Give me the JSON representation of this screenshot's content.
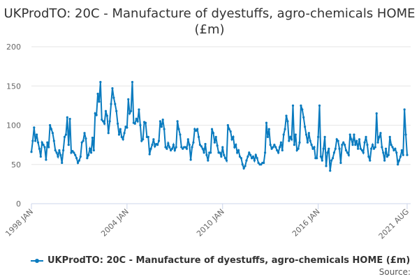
{
  "chart_data": {
    "type": "line",
    "title": "UKProdTO: 20C - Manufacture of dyestuffs, agro-chemicals HOME (£m)",
    "xlabel": "",
    "ylabel": "",
    "ylim": [
      0,
      200
    ],
    "yticks": [
      "0",
      "50",
      "100",
      "150",
      "200"
    ],
    "xticks": [
      "1998 JAN",
      "2004 JAN",
      "2010 JAN",
      "2016 JAN",
      "2021 AUG"
    ],
    "start": "1998-01",
    "frequency": "monthly",
    "grid": true,
    "legend_position": "bottom",
    "color": "#0a7bbf",
    "series": [
      {
        "name": "UKProdTO: 20C - Manufacture of dyestuffs, agro-chemicals HOME (£m)",
        "values": [
          66,
          80,
          97,
          80,
          88,
          78,
          70,
          60,
          78,
          75,
          72,
          56,
          78,
          72,
          100,
          95,
          90,
          80,
          68,
          65,
          60,
          68,
          62,
          52,
          68,
          85,
          88,
          110,
          75,
          108,
          65,
          67,
          65,
          62,
          58,
          52,
          55,
          60,
          78,
          80,
          90,
          83,
          58,
          62,
          70,
          65,
          84,
          68,
          115,
          113,
          140,
          130,
          155,
          107,
          105,
          102,
          118,
          112,
          90,
          105,
          127,
          147,
          135,
          127,
          118,
          102,
          88,
          95,
          85,
          82,
          90,
          98,
          97,
          133,
          115,
          118,
          155,
          103,
          102,
          108,
          105,
          120,
          100,
          80,
          82,
          104,
          103,
          85,
          85,
          63,
          70,
          75,
          82,
          73,
          76,
          75,
          80,
          105,
          98,
          107,
          95,
          72,
          70,
          77,
          72,
          68,
          70,
          75,
          68,
          72,
          105,
          95,
          88,
          72,
          70,
          72,
          72,
          70,
          82,
          75,
          56,
          72,
          78,
          95,
          93,
          95,
          85,
          75,
          73,
          70,
          65,
          76,
          62,
          55,
          65,
          65,
          95,
          90,
          78,
          85,
          74,
          65,
          65,
          60,
          72,
          62,
          58,
          55,
          100,
          95,
          92,
          82,
          85,
          72,
          75,
          65,
          68,
          60,
          58,
          50,
          45,
          48,
          55,
          60,
          65,
          62,
          58,
          60,
          55,
          62,
          58,
          52,
          50,
          50,
          52,
          52,
          65,
          103,
          85,
          95,
          75,
          70,
          72,
          75,
          72,
          68,
          65,
          72,
          78,
          68,
          88,
          95,
          112,
          105,
          80,
          85,
          82,
          125,
          75,
          88,
          68,
          70,
          78,
          125,
          120,
          110,
          98,
          88,
          78,
          90,
          80,
          75,
          70,
          72,
          58,
          58,
          85,
          125,
          60,
          55,
          70,
          85,
          48,
          65,
          70,
          42,
          55,
          58,
          65,
          70,
          82,
          80,
          70,
          52,
          75,
          78,
          75,
          68,
          65,
          62,
          88,
          82,
          75,
          88,
          75,
          80,
          70,
          82,
          70,
          68,
          65,
          78,
          85,
          75,
          60,
          55,
          70,
          75,
          70,
          72,
          115,
          78,
          85,
          90,
          72,
          65,
          55,
          70,
          60,
          62,
          85,
          75,
          72,
          68,
          70,
          65,
          50,
          55,
          60,
          68,
          62,
          120,
          88,
          62
        ]
      }
    ],
    "source_label": "Source:"
  }
}
